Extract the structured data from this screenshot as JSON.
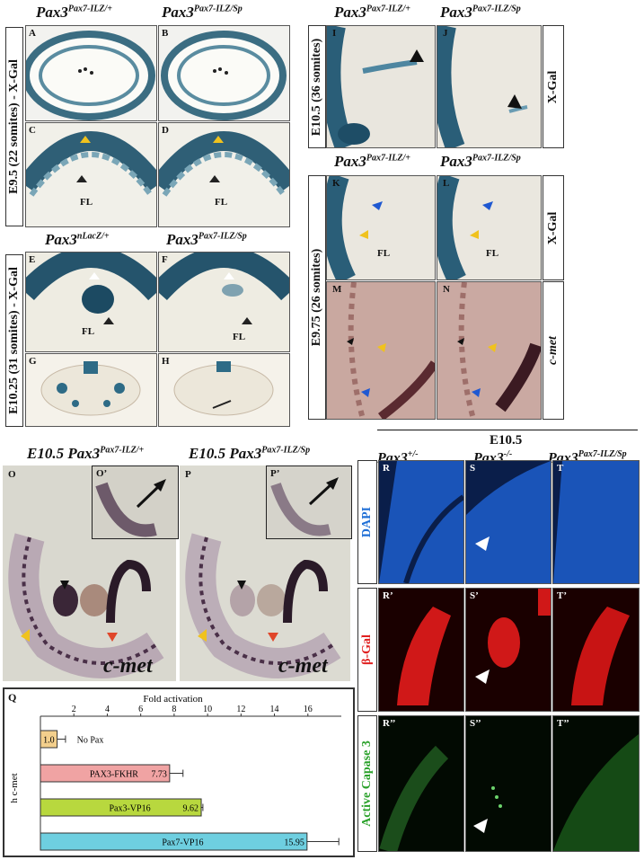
{
  "figure": {
    "col1": {
      "title_left_base": "Pax3",
      "title_left_sup": "Pax7-ILZ/+",
      "title_right_base": "Pax3",
      "title_right_sup": "Pax7-ILZ/Sp",
      "side_label": "E9.5 (22 somites) - X-Gal",
      "panels": [
        "A",
        "B",
        "C",
        "D"
      ],
      "fl": "FL"
    },
    "col1b": {
      "title_left_base": "Pax3",
      "title_left_sup": "nLacZ/+",
      "title_right_base": "Pax3",
      "title_right_sup": "Pax7-ILZ/Sp",
      "side_label": "E10.25 (31 somites) - X-Gal",
      "panels": [
        "E",
        "F",
        "G",
        "H"
      ],
      "fl": "FL"
    },
    "col2": {
      "title_left_base": "Pax3",
      "title_left_sup": "Pax7-ILZ/+",
      "title_right_base": "Pax3",
      "title_right_sup": "Pax7-ILZ/Sp",
      "side_label_top": "E10.5 (36 somites)",
      "right_label_top": "X-Gal",
      "panels_top": [
        "I",
        "J"
      ],
      "title2_left_base": "Pax3",
      "title2_left_sup": "Pax7-ILZ/+",
      "title2_right_base": "Pax3",
      "title2_right_sup": "Pax7-ILZ/Sp",
      "side_label_bottom": "E9.75 (26 somites)",
      "right_label_mid": "X-Gal",
      "right_label_bot": "c-met",
      "panels_bottom": [
        "K",
        "L",
        "M",
        "N"
      ],
      "fl": "FL"
    },
    "row3": {
      "title_left": "E10.5",
      "title_left_base": "Pax3",
      "title_left_sup": "Pax7-ILZ/+",
      "title_right": "E10.5",
      "title_right_base": "Pax3",
      "title_right_sup": "Pax7-ILZ/Sp",
      "panel_O": "O",
      "panel_O_inset": "O’",
      "panel_P": "P",
      "panel_P_inset": "P’",
      "cmet": "c-met"
    },
    "conf": {
      "header": "E10.5",
      "col_base": [
        "Pax3",
        "Pax3",
        "Pax3"
      ],
      "col_sup": [
        "+/-",
        "-/-",
        "Pax7-ILZ/Sp"
      ],
      "row_labels": [
        "DAPI",
        "β-Gal",
        "Active Capase 3"
      ],
      "row_colors": [
        "#1f6fd6",
        "#e02020",
        "#2aa12a"
      ],
      "panels": [
        [
          "R",
          "S",
          "T"
        ],
        [
          "R’",
          "S’",
          "T’"
        ],
        [
          "R’’",
          "S’’",
          "T’’"
        ]
      ]
    },
    "chart_panel_label": "Q"
  },
  "chart_data": {
    "type": "bar",
    "orientation": "horizontal",
    "title": "Fold activation",
    "group_label": "h c-met",
    "xticks": [
      2,
      4,
      6,
      8,
      10,
      12,
      14,
      16
    ],
    "xlim": [
      0,
      18
    ],
    "categories": [
      "No Pax",
      "PAX3-FKHR",
      "Pax3-VP16",
      "Pax7-VP16"
    ],
    "values": [
      1.0,
      7.73,
      9.62,
      15.95
    ],
    "value_labels": [
      "1.0",
      "7.73",
      "9.62",
      "15.95"
    ],
    "errors": [
      0.5,
      0.8,
      0.1,
      1.9
    ],
    "colors": [
      "#f3cf8c",
      "#f0a3a3",
      "#b8d83e",
      "#6ecfe0"
    ]
  }
}
